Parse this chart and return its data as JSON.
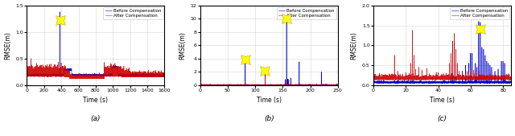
{
  "fig_width": 6.4,
  "fig_height": 1.69,
  "dpi": 100,
  "panels": [
    {
      "label": "(a)",
      "xlim": [
        0,
        1600
      ],
      "ylim": [
        0,
        1.5
      ],
      "xticks": [
        0,
        200,
        400,
        600,
        800,
        1000,
        1200,
        1400,
        1600
      ],
      "yticks": [
        0,
        0.5,
        1.0,
        1.5
      ],
      "xlabel": "Time (s)",
      "ylabel": "RMSE(m)",
      "star_x": 385,
      "star_y": 1.22
    },
    {
      "label": "(b)",
      "xlim": [
        0,
        250
      ],
      "ylim": [
        0,
        12
      ],
      "xticks": [
        0,
        50,
        100,
        150,
        200,
        250
      ],
      "yticks": [
        0,
        2,
        4,
        6,
        8,
        10,
        12
      ],
      "xlabel": "Time (s)",
      "ylabel": "RMSE(m)",
      "star1_x": 82,
      "star1_y": 3.8,
      "star2_x": 118,
      "star2_y": 2.1,
      "star3_x": 157,
      "star3_y": 10.0
    },
    {
      "label": "(c)",
      "xlim": [
        0,
        85
      ],
      "ylim": [
        0,
        2.0
      ],
      "xticks": [
        0,
        20,
        40,
        60,
        80
      ],
      "yticks": [
        0,
        0.5,
        1.0,
        1.5,
        2.0
      ],
      "xlabel": "Time (s)",
      "ylabel": "RMSE(m)",
      "star_x": 66,
      "star_y": 1.42
    }
  ],
  "legend_labels": [
    "Before Compensation",
    "After Compensation"
  ],
  "before_color": "#0000cc",
  "after_color": "#cc0000",
  "star_color": "#ffff00",
  "star_size": 12,
  "grid_color": "#cccccc",
  "bg_color": "white"
}
